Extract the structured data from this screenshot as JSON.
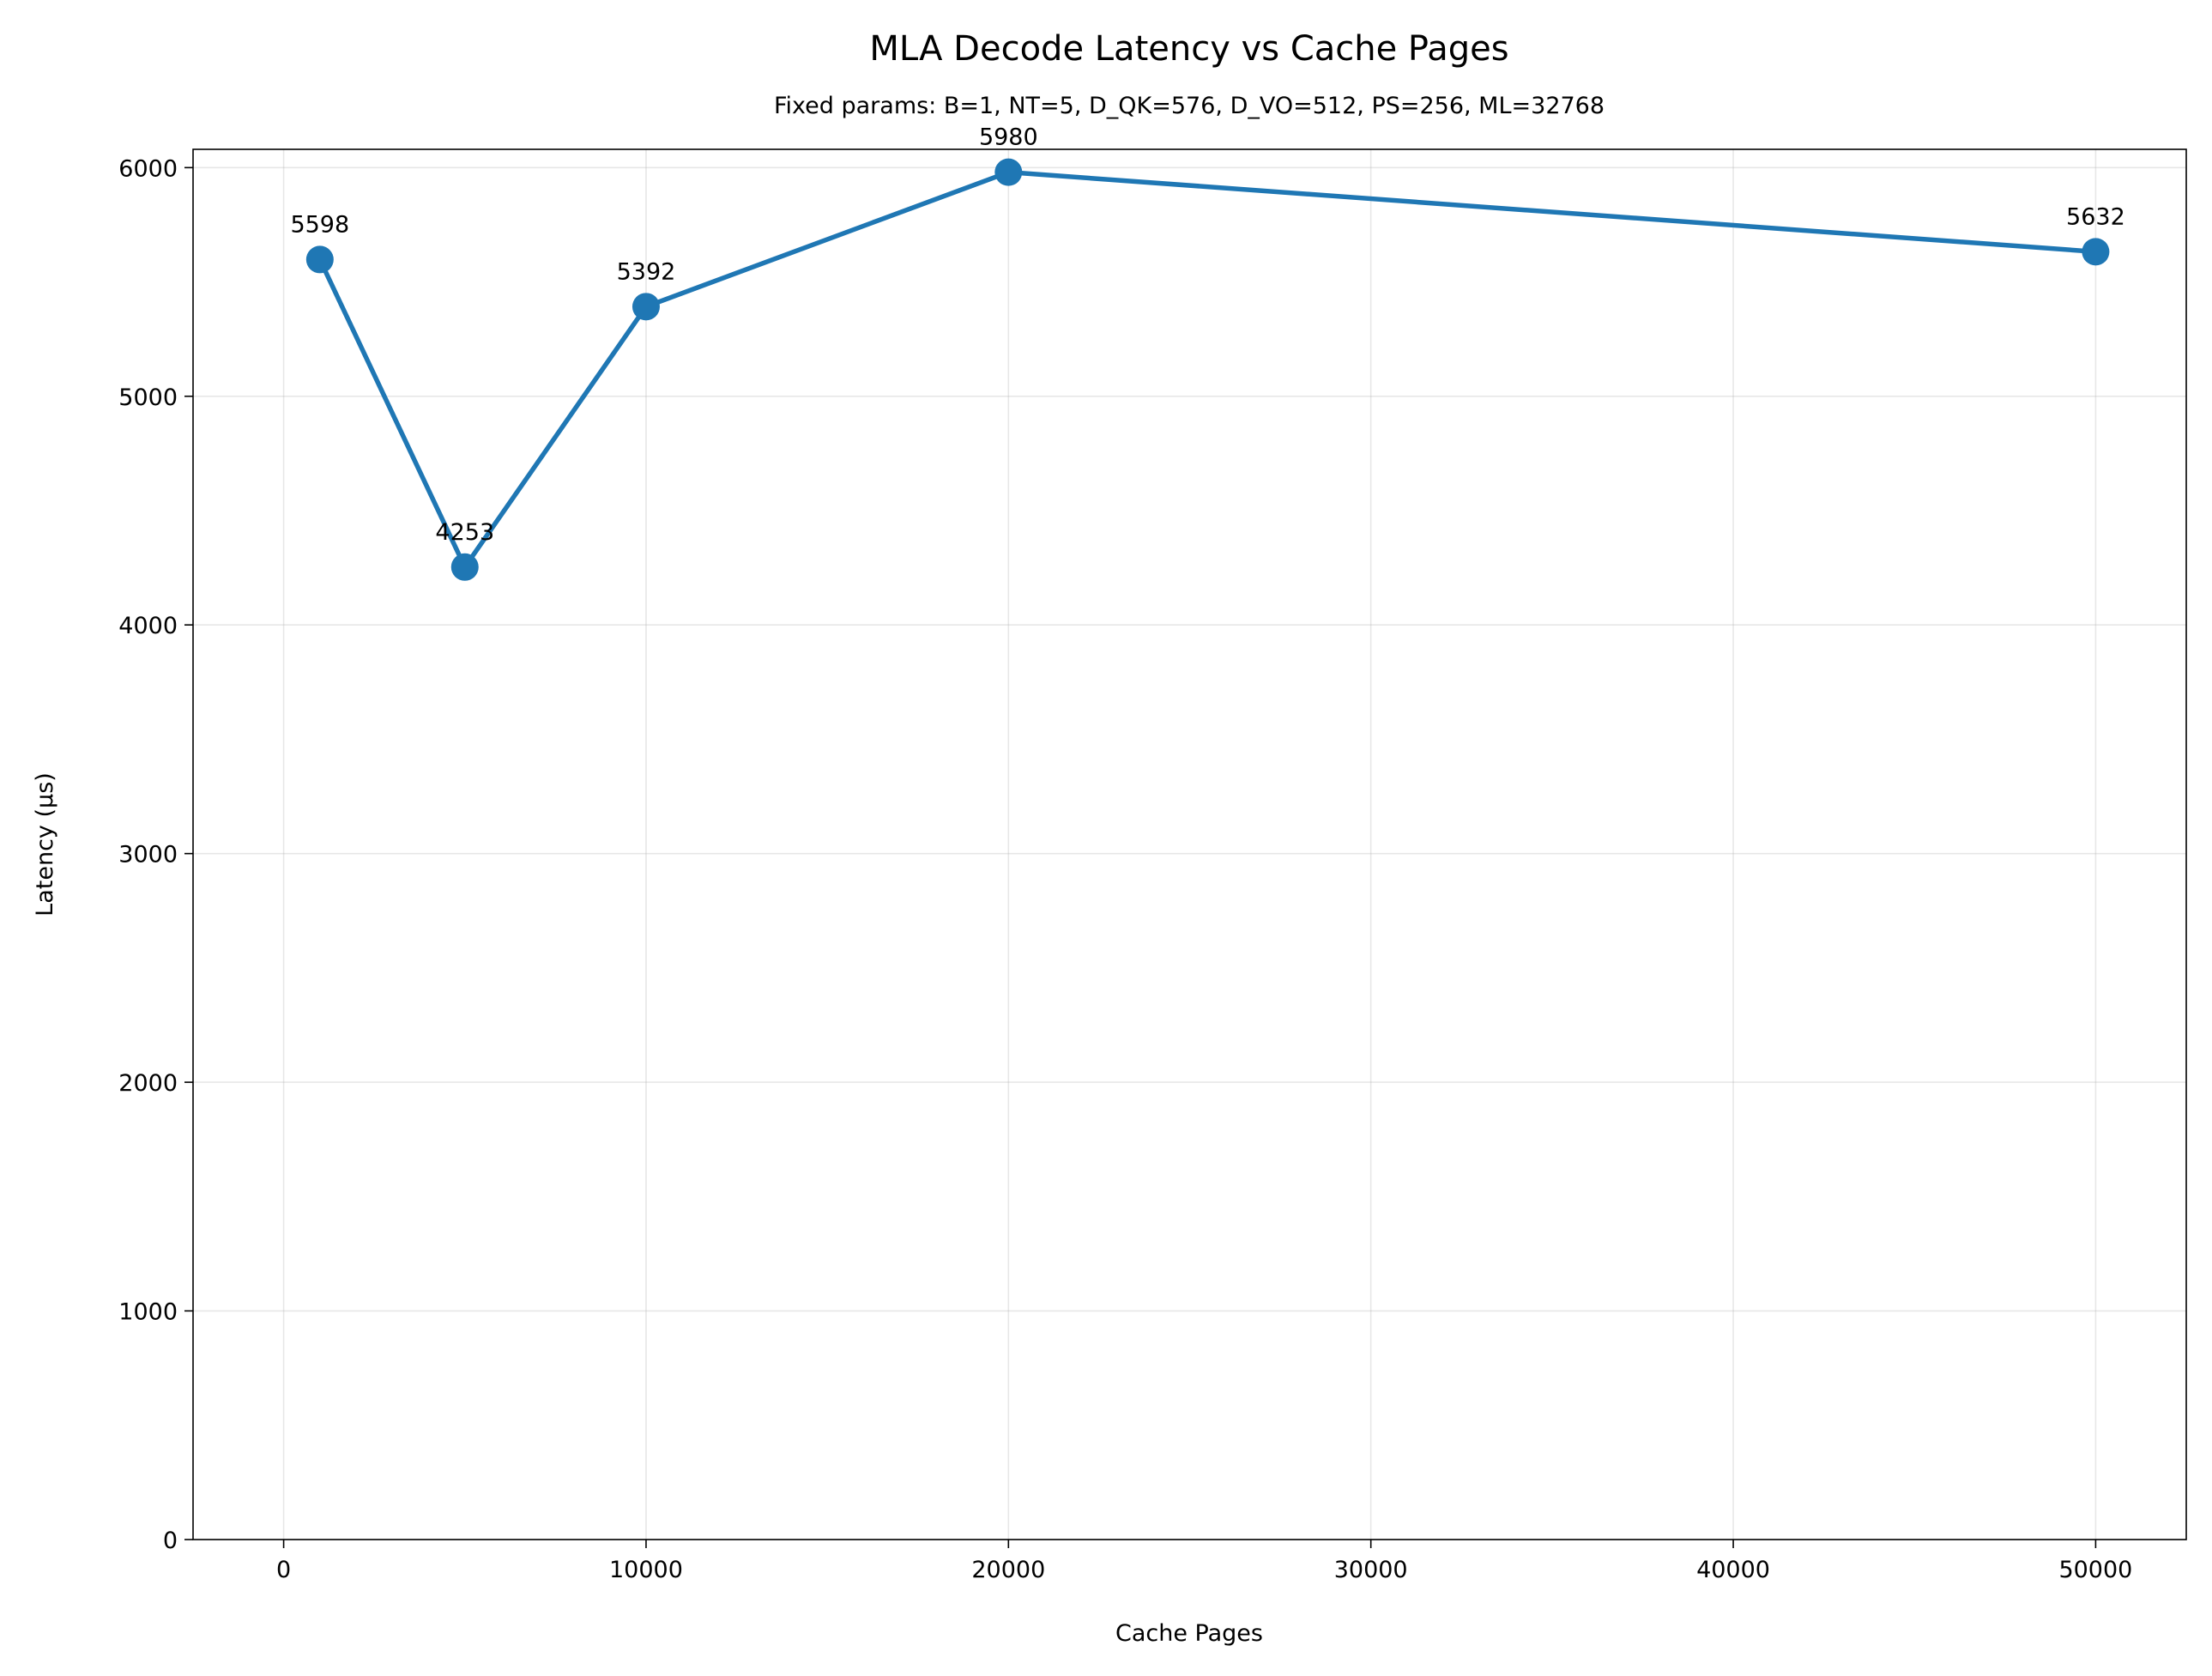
{
  "chart_data": {
    "type": "line",
    "title": "MLA Decode Latency vs Cache Pages",
    "subtitle": "Fixed params: B=1, NT=5, D_QK=576, D_VO=512, PS=256, ML=32768",
    "xlabel": "Cache Pages",
    "ylabel": "Latency (μs)",
    "xlim": [
      -2500,
      52500
    ],
    "ylim": [
      0,
      6080
    ],
    "xticks": [
      0,
      10000,
      20000,
      30000,
      40000,
      50000
    ],
    "xtick_labels": [
      "0",
      "10000",
      "20000",
      "30000",
      "40000",
      "50000"
    ],
    "yticks": [
      0,
      1000,
      2000,
      3000,
      4000,
      5000,
      6000
    ],
    "ytick_labels": [
      "0",
      "1000",
      "2000",
      "3000",
      "4000",
      "5000",
      "6000"
    ],
    "grid": true,
    "series": [
      {
        "x": [
          1000,
          5000,
          10000,
          20000,
          50000
        ],
        "y": [
          5598,
          4253,
          5392,
          5980,
          5632
        ],
        "labels": [
          "5598",
          "4253",
          "5392",
          "5980",
          "5632"
        ],
        "color": "#1f77b4",
        "marker": "circle"
      }
    ]
  }
}
